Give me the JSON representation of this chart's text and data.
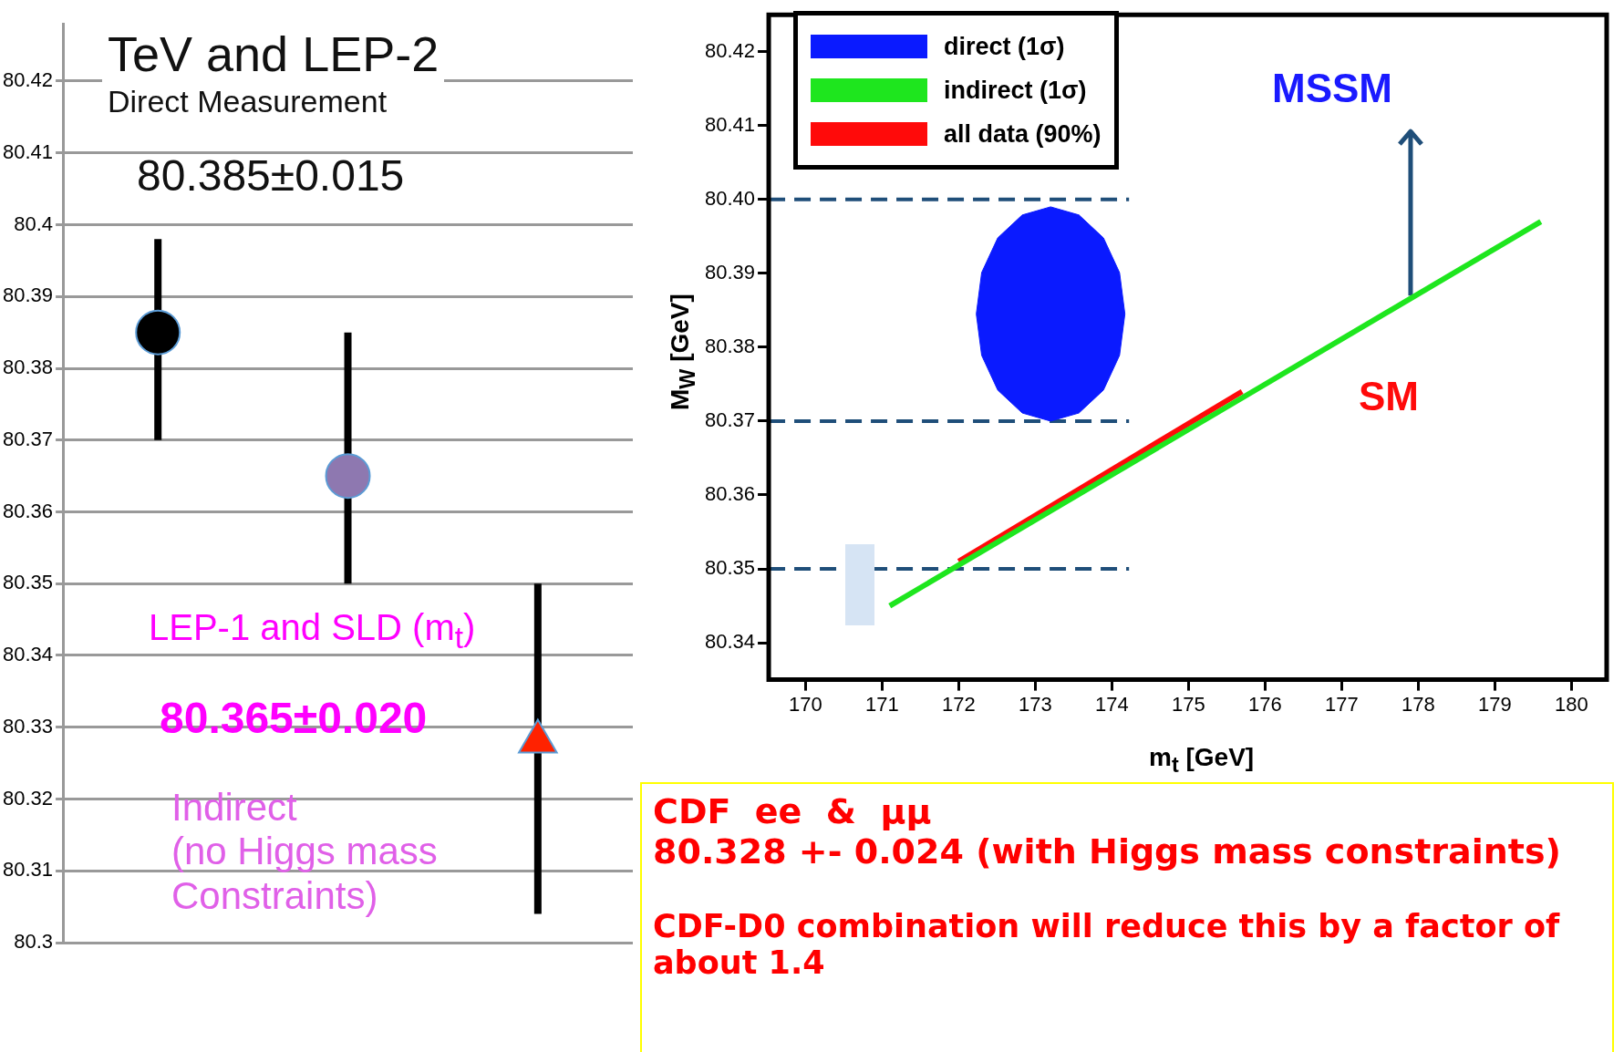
{
  "chart_data": [
    {
      "type": "scatter",
      "title": "TeV and LEP-2",
      "subtitle": "Direct Measurement",
      "categories": [
        null,
        null,
        null
      ],
      "series": [
        {
          "color": "#000000",
          "marker": "circle",
          "values": [
            80.385,
            null,
            null
          ],
          "errors": [
            [
              80.37,
              80.398
            ],
            null,
            null
          ]
        },
        {
          "color": "#8e78b0",
          "marker": "circle",
          "values": [
            null,
            80.365,
            null
          ],
          "errors": [
            null,
            [
              80.35,
              80.385
            ],
            null
          ]
        },
        {
          "color": "#ff2200",
          "marker": "triangle",
          "values": [
            null,
            null,
            80.328
          ],
          "errors": [
            null,
            null,
            [
              80.304,
              80.35
            ]
          ]
        }
      ],
      "ylim": [
        80.3,
        80.428
      ],
      "yticks": [
        80.3,
        80.31,
        80.32,
        80.33,
        80.34,
        80.35,
        80.36,
        80.37,
        80.38,
        80.39,
        80.4,
        80.41,
        80.42
      ],
      "grid": "y",
      "tick_labels": "y",
      "annotations": [
        "80.385±0.015",
        "LEP-1 and SLD (m$_{t}$)",
        "80.365±0.020",
        "Indirect\n(no Higgs mass\nConstraints)",
        "CDF  ee  &  μμ",
        "80.328 +- 0.024 (with Higgs mass constraints)",
        "CDF-D0 combination will reduce this by a factor of about 1.4"
      ]
    },
    {
      "type": "line",
      "xlabel": "m$_{t}$ [GeV]",
      "ylabel": "M$_{W}$ [GeV]",
      "xlim": [
        169.52,
        180.46
      ],
      "ylim": [
        80.335,
        80.425
      ],
      "xticks": [
        170,
        171,
        172,
        173,
        174,
        175,
        176,
        177,
        178,
        179,
        180
      ],
      "yticks": [
        80.34,
        80.35,
        80.36,
        80.37,
        80.38,
        80.39,
        {
          "value": 80.4,
          "label": "80.40"
        },
        80.41,
        80.42
      ],
      "legend": "top left",
      "series": [
        {
          "name": "direct (1σ)",
          "type": "area",
          "color": "#0a1aff",
          "x": [
            174.17,
            174.1,
            173.89,
            173.57,
            173.2,
            172.83,
            172.51,
            172.3,
            172.23,
            172.3,
            172.51,
            172.83,
            173.2,
            173.57,
            173.89,
            174.1,
            174.17
          ],
          "values": [
            80.3845,
            80.3901,
            80.3948,
            80.3979,
            80.399,
            80.3979,
            80.3948,
            80.3901,
            80.3845,
            80.3789,
            80.3742,
            80.3711,
            80.37,
            80.3711,
            80.3742,
            80.3789,
            80.3845
          ]
        },
        {
          "name": "indirect (1σ)",
          "color": "#1ee61e",
          "x": [
            171.1,
            179.6
          ],
          "values": [
            80.345,
            80.397
          ]
        },
        {
          "name": "all data (90%)",
          "color": "#ff0a0a",
          "x": [
            172.0,
            175.7
          ],
          "values": [
            80.351,
            80.374
          ]
        }
      ],
      "ref_lines": [
        {
          "axis": "y",
          "value": 80.4,
          "color": "#1f4e79",
          "line_style": "dashed"
        },
        {
          "axis": "y",
          "value": 80.37,
          "color": "#1f4e79",
          "line_style": "dashed"
        },
        {
          "axis": "y",
          "value": 80.35,
          "color": "#1f4e79",
          "line_style": "dashed"
        }
      ],
      "annotations": [
        {
          "text": "MSSM",
          "x": 177.9,
          "y": 80.387
        },
        "SM"
      ]
    }
  ]
}
